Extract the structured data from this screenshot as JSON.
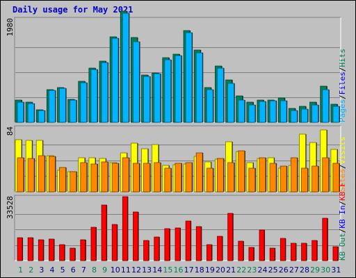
{
  "chart_data": {
    "type": "bar",
    "title": "Daily usage for May 2021",
    "x": [
      "1",
      "2",
      "3",
      "4",
      "5",
      "6",
      "7",
      "8",
      "9",
      "10",
      "11",
      "12",
      "13",
      "14",
      "15",
      "16",
      "17",
      "18",
      "19",
      "20",
      "21",
      "22",
      "23",
      "24",
      "25",
      "26",
      "27",
      "28",
      "29",
      "30",
      "31"
    ],
    "weekend_days": [
      "1",
      "2",
      "8",
      "9",
      "15",
      "16",
      "22",
      "23",
      "29",
      "30"
    ],
    "colors": {
      "hits": "#00805a",
      "files": "#00b4ff",
      "pages": "#00b4ff",
      "visits": "#ffff00",
      "sites": "#ff8800",
      "kbytes": "#ff0000",
      "weekday_label": "#000080",
      "weekend_label": "#00805a"
    },
    "panels": [
      {
        "id": "hits-panel",
        "max_label": "1980",
        "ymax": 1980,
        "legend": [
          {
            "text": "Hits",
            "color": "#00805a"
          },
          {
            "text": "/",
            "color": "#000000"
          },
          {
            "text": "Files",
            "color": "#0000ff"
          },
          {
            "text": "/",
            "color": "#000000"
          },
          {
            "text": "Pages",
            "color": "#00b4ff"
          }
        ],
        "series": [
          {
            "name": "Hits",
            "values": [
              430,
              380,
              240,
              630,
              670,
              440,
              790,
              1030,
              1170,
              1640,
              2130,
              1620,
              900,
              950,
              1230,
              1300,
              1750,
              1380,
              660,
              1080,
              810,
              500,
              380,
              430,
              430,
              460,
              260,
              300,
              380,
              690,
              340
            ]
          },
          {
            "name": "Files",
            "values": [
              390,
              360,
              220,
              610,
              650,
              420,
              760,
              1010,
              1140,
              1610,
              2080,
              1540,
              880,
              930,
              1200,
              1270,
              1720,
              1330,
              630,
              1040,
              750,
              420,
              330,
              400,
              410,
              410,
              230,
              250,
              330,
              620,
              300
            ]
          }
        ]
      },
      {
        "id": "visits-panel",
        "max_label": "84",
        "ymax": 84,
        "legend": [
          {
            "text": "Visits",
            "color": "#ffff00"
          },
          {
            "text": "/",
            "color": "#000000"
          },
          {
            "text": "Sites",
            "color": "#ff8800"
          }
        ],
        "series": [
          {
            "name": "Visits",
            "values": [
              68,
              67,
              67,
              47,
              28,
              26,
              44,
              44,
              43,
              38,
              51,
              63,
              56,
              61,
              34,
              35,
              36,
              46,
              39,
              42,
              65,
              52,
              38,
              43,
              44,
              31,
              34,
              75,
              64,
              80,
              55
            ]
          },
          {
            "name": "Sites",
            "values": [
              44,
              43,
              47,
              46,
              32,
              26,
              38,
              36,
              39,
              37,
              44,
              37,
              37,
              38,
              31,
              37,
              38,
              51,
              31,
              43,
              38,
              53,
              31,
              44,
              37,
              33,
              44,
              31,
              33,
              44,
              37
            ]
          }
        ]
      },
      {
        "id": "kbytes-panel",
        "max_label": "33528",
        "ymax": 33528,
        "legend": [
          {
            "text": "KB F",
            "color": "#ff0000"
          },
          {
            "text": "/",
            "color": "#000000"
          },
          {
            "text": "KB In",
            "color": "#0000ff"
          },
          {
            "text": "/",
            "color": "#000000"
          },
          {
            "text": "KB Out",
            "color": "#00805a"
          }
        ],
        "series": [
          {
            "name": "KB F",
            "values": [
              12200,
              12000,
              11000,
              11400,
              8500,
              6700,
              11000,
              17600,
              29300,
              19000,
              33500,
              25400,
              10400,
              12300,
              16600,
              17000,
              20600,
              18000,
              8500,
              12800,
              24800,
              10200,
              6900,
              16000,
              6400,
              11800,
              9200,
              9000,
              10700,
              22300,
              7400
            ]
          }
        ]
      }
    ]
  }
}
